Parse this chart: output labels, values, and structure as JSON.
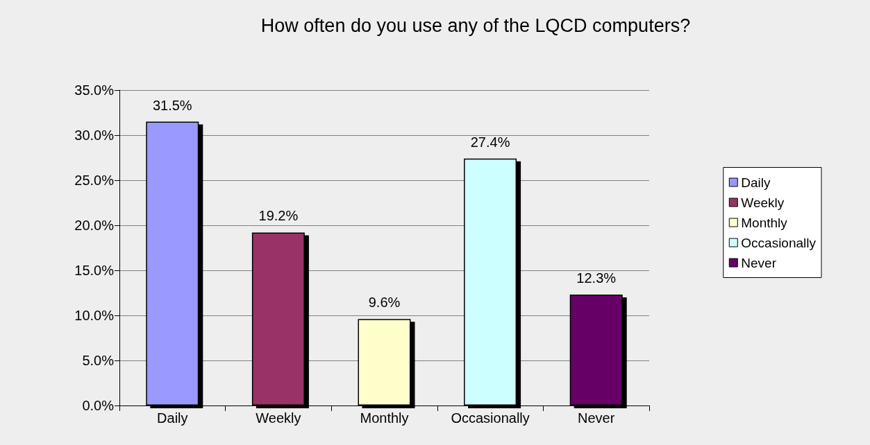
{
  "chart_data": {
    "type": "bar",
    "title": "How often do you use any of the LQCD computers?",
    "categories": [
      "Daily",
      "Weekly",
      "Monthly",
      "Occasionally",
      "Never"
    ],
    "series": [
      {
        "name": "Daily",
        "color": "#9999ff",
        "values": [
          31.5,
          null,
          null,
          null,
          null
        ],
        "value_labels": [
          "31.5%",
          null,
          null,
          null,
          null
        ]
      },
      {
        "name": "Weekly",
        "color": "#993366",
        "values": [
          null,
          19.2,
          null,
          null,
          null
        ],
        "value_labels": [
          null,
          "19.2%",
          null,
          null,
          null
        ]
      },
      {
        "name": "Monthly",
        "color": "#ffffcc",
        "values": [
          null,
          null,
          9.6,
          null,
          null
        ],
        "value_labels": [
          null,
          null,
          "9.6%",
          null,
          null
        ]
      },
      {
        "name": "Occasionally",
        "color": "#ccffff",
        "values": [
          null,
          null,
          null,
          27.4,
          null
        ],
        "value_labels": [
          null,
          null,
          null,
          "27.4%",
          null
        ]
      },
      {
        "name": "Never",
        "color": "#660066",
        "values": [
          null,
          null,
          null,
          null,
          12.3
        ],
        "value_labels": [
          null,
          null,
          null,
          null,
          "12.3%"
        ]
      }
    ],
    "ylim": [
      0,
      35
    ],
    "yticks": [
      {
        "value": 0,
        "label": "0.0%"
      },
      {
        "value": 5,
        "label": "5.0%"
      },
      {
        "value": 10,
        "label": "10.0%"
      },
      {
        "value": 15,
        "label": "15.0%"
      },
      {
        "value": 20,
        "label": "20.0%"
      },
      {
        "value": 25,
        "label": "25.0%"
      },
      {
        "value": 30,
        "label": "30.0%"
      },
      {
        "value": 35,
        "label": "35.0%"
      }
    ],
    "grid": "y",
    "legend": "right"
  }
}
